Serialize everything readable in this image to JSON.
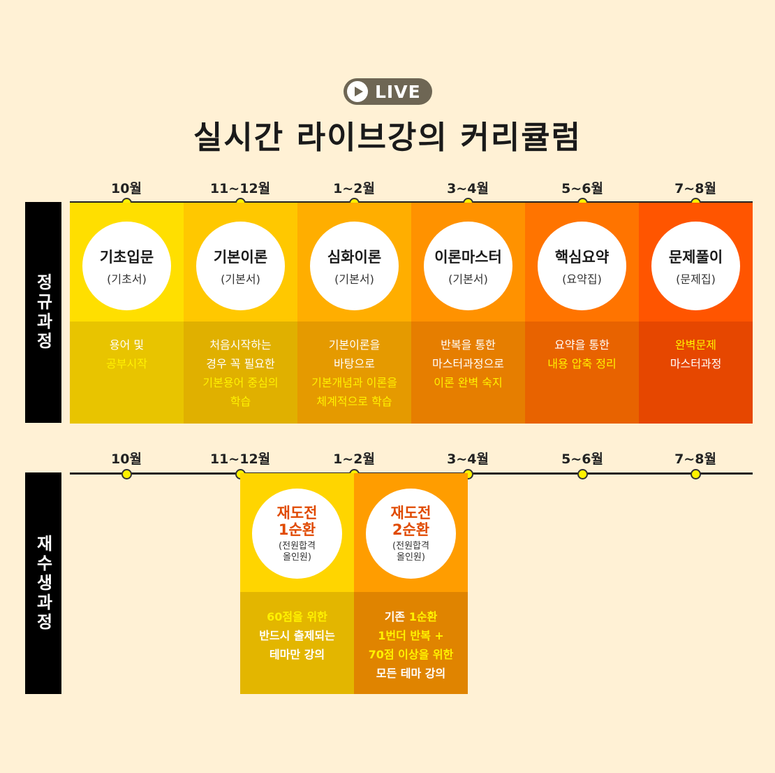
{
  "badge": {
    "label": "LIVE"
  },
  "title": "실시간 라이브강의 커리큘럼",
  "months": [
    "10월",
    "11~12월",
    "1~2월",
    "3~4월",
    "5~6월",
    "7~8월"
  ],
  "regular": {
    "side_label": "정규과정",
    "stages": [
      {
        "name": "기초입문",
        "sub": "(기초서)",
        "desc": [
          {
            "t": "용어 및",
            "h": false
          },
          {
            "t": "공부시작",
            "h": true
          }
        ],
        "top_color": "#ffdf00",
        "bot_color": "#e8c400"
      },
      {
        "name": "기본이론",
        "sub": "(기본서)",
        "desc": [
          {
            "t": "처음시작하는",
            "h": false
          },
          {
            "t": "경우 꼭 필요한",
            "h": false
          },
          {
            "t": "기본용어 중심의",
            "h": true
          },
          {
            "t": "학습",
            "h": true
          }
        ],
        "top_color": "#ffc800",
        "bot_color": "#e0b000"
      },
      {
        "name": "심화이론",
        "sub": "(기본서)",
        "desc": [
          {
            "t": "기본이론을",
            "h": false
          },
          {
            "t": "바탕으로",
            "h": false
          },
          {
            "t": "기본개념과 이론을",
            "h": true
          },
          {
            "t": "체계적으로 학습",
            "h": true
          }
        ],
        "top_color": "#ffae00",
        "bot_color": "#e59a00"
      },
      {
        "name": "이론마스터",
        "sub": "(기본서)",
        "desc": [
          {
            "t": "반복을 통한",
            "h": false
          },
          {
            "t": "마스터과정으로",
            "h": false
          },
          {
            "t": "이론 완벽 숙지",
            "h": true
          }
        ],
        "top_color": "#ff9200",
        "bot_color": "#e67e00"
      },
      {
        "name": "핵심요약",
        "sub": "(요약집)",
        "desc": [
          {
            "t": "요약을 통한",
            "h": false
          },
          {
            "t": "내용 압축 정리",
            "h": true
          }
        ],
        "top_color": "#ff7400",
        "bot_color": "#e86300"
      },
      {
        "name": "문제풀이",
        "sub": "(문제집)",
        "desc": [
          {
            "t": "완벽문제",
            "h": true
          },
          {
            "t": "마스터과정",
            "h": false
          }
        ],
        "top_color": "#ff5500",
        "bot_color": "#e64700"
      }
    ]
  },
  "repeat": {
    "side_label": "재수생과정",
    "stages": [
      {
        "name_lines": [
          "재도전",
          "1순환"
        ],
        "sub_lines": [
          "(전원합격",
          "올인원)"
        ],
        "desc": [
          {
            "t": "60점을 위한",
            "h": true
          },
          {
            "t": "반드시 출제되는",
            "h": false
          },
          {
            "t": "테마만 강의",
            "h": false
          }
        ],
        "top_color": "#ffd500",
        "bot_color": "#e3b600"
      },
      {
        "name_lines": [
          "재도전",
          "2순환"
        ],
        "sub_lines": [
          "(전원합격",
          "올인원)"
        ],
        "desc": [
          {
            "t": "기존 ",
            "h": false,
            "extra": "1순환"
          },
          {
            "t": "1번더 반복 +",
            "h": true
          },
          {
            "t": "70점 이상을 위한",
            "h": true
          },
          {
            "t": "모든 테마 강의",
            "h": false
          }
        ],
        "top_color": "#ff9d00",
        "bot_color": "#e08400"
      }
    ]
  }
}
